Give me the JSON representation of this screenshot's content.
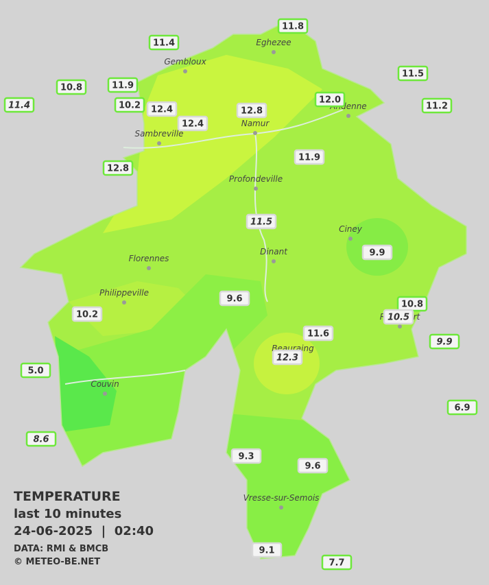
{
  "stations": [
    "11.8",
    "11.4",
    "10.8",
    "11.9",
    "11.5",
    "11.4",
    "10.2",
    "12.4",
    "12.8",
    "12.0",
    "11.2",
    "12.4",
    "11.9",
    "12.8",
    "11.5",
    "9.9",
    "9.6",
    "10.8",
    "10.5",
    "10.2",
    "11.6",
    "9.9",
    "12.3",
    "5.0",
    "6.9",
    "8.6",
    "9.3",
    "9.6",
    "9.1",
    "7.7"
  ],
  "towns": [
    "Eghezee",
    "Gembloux",
    "Andenne",
    "Namur",
    "Sambreville",
    "Profondeville",
    "Ciney",
    "Dinant",
    "Florennes",
    "Philippeville",
    "Rochefort",
    "Beauraing",
    "Couvin",
    "Vresse-sur-Semois"
  ],
  "legend": {
    "title": "TEMPERATURE",
    "period": "last 10 minutes",
    "datetime": "24-06-2025  |  02:40",
    "source": "DATA: RMI & BMCB",
    "copyright": "© METEO-BE.NET"
  }
}
